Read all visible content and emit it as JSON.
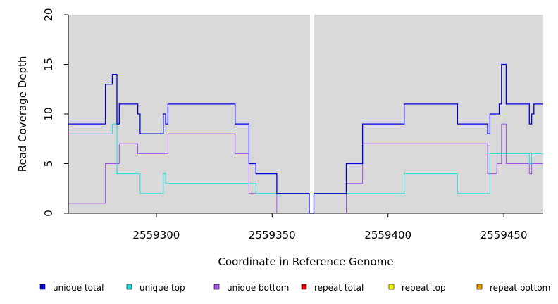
{
  "chart_data": {
    "type": "line",
    "xlabel": "Coordinate in Reference Genome",
    "ylabel": "Read Coverage Depth",
    "xlim": [
      2559262,
      2559467
    ],
    "ylim": [
      0,
      20
    ],
    "x_ticks": [
      2559300,
      2559350,
      2559400,
      2559450
    ],
    "y_ticks": [
      0,
      5,
      10,
      15,
      20
    ],
    "x_tick_labels": [
      "2559300",
      "2559350",
      "2559400",
      "2559450"
    ],
    "y_tick_labels": [
      "0",
      "5",
      "10",
      "15",
      "20"
    ],
    "grid": false,
    "panel_background": "#d9d9d9",
    "gap": {
      "start": 2559366,
      "end": 2559368,
      "color": "#ffffff"
    },
    "legend_position": "bottom",
    "series": [
      {
        "name": "unique total",
        "color": "#0000dd",
        "steps": [
          [
            2559262,
            9
          ],
          [
            2559278,
            13
          ],
          [
            2559281,
            14
          ],
          [
            2559283,
            9
          ],
          [
            2559284,
            11
          ],
          [
            2559292,
            10
          ],
          [
            2559293,
            8
          ],
          [
            2559303,
            10
          ],
          [
            2559304,
            9
          ],
          [
            2559305,
            11
          ],
          [
            2559334,
            9
          ],
          [
            2559340,
            5
          ],
          [
            2559343,
            4
          ],
          [
            2559352,
            2
          ],
          [
            2559366,
            0
          ],
          [
            2559368,
            2
          ],
          [
            2559382,
            5
          ],
          [
            2559389,
            9
          ],
          [
            2559407,
            11
          ],
          [
            2559430,
            9
          ],
          [
            2559443,
            8
          ],
          [
            2559444,
            10
          ],
          [
            2559448,
            11
          ],
          [
            2559449,
            15
          ],
          [
            2559451,
            11
          ],
          [
            2559461,
            9
          ],
          [
            2559462,
            10
          ],
          [
            2559463,
            11
          ],
          [
            2559467,
            11
          ]
        ]
      },
      {
        "name": "unique top",
        "color": "#22dddd",
        "steps": [
          [
            2559262,
            8
          ],
          [
            2559278,
            8
          ],
          [
            2559281,
            9
          ],
          [
            2559283,
            4
          ],
          [
            2559293,
            2
          ],
          [
            2559303,
            4
          ],
          [
            2559304,
            3
          ],
          [
            2559340,
            3
          ],
          [
            2559343,
            2
          ],
          [
            2559352,
            2
          ],
          [
            2559366,
            0
          ],
          [
            2559368,
            2
          ],
          [
            2559382,
            2
          ],
          [
            2559389,
            2
          ],
          [
            2559407,
            4
          ],
          [
            2559430,
            2
          ],
          [
            2559443,
            2
          ],
          [
            2559444,
            6
          ],
          [
            2559461,
            5
          ],
          [
            2559462,
            6
          ],
          [
            2559467,
            6
          ]
        ]
      },
      {
        "name": "unique bottom",
        "color": "#a050e8",
        "steps": [
          [
            2559262,
            1
          ],
          [
            2559278,
            5
          ],
          [
            2559283,
            5
          ],
          [
            2559284,
            7
          ],
          [
            2559292,
            6
          ],
          [
            2559305,
            8
          ],
          [
            2559334,
            6
          ],
          [
            2559340,
            2
          ],
          [
            2559352,
            0
          ],
          [
            2559382,
            3
          ],
          [
            2559389,
            7
          ],
          [
            2559443,
            4
          ],
          [
            2559447,
            5
          ],
          [
            2559449,
            9
          ],
          [
            2559451,
            5
          ],
          [
            2559461,
            4
          ],
          [
            2559462,
            5
          ],
          [
            2559467,
            5
          ]
        ]
      },
      {
        "name": "repeat total",
        "color": "#dd0000",
        "steps": [
          [
            2559262,
            0
          ],
          [
            2559467,
            0
          ]
        ]
      },
      {
        "name": "repeat top",
        "color": "#ffff00",
        "steps": [
          [
            2559262,
            0
          ],
          [
            2559467,
            0
          ]
        ]
      },
      {
        "name": "repeat bottom",
        "color": "#f0a000",
        "steps": [
          [
            2559262,
            0
          ],
          [
            2559467,
            0
          ]
        ]
      }
    ]
  }
}
